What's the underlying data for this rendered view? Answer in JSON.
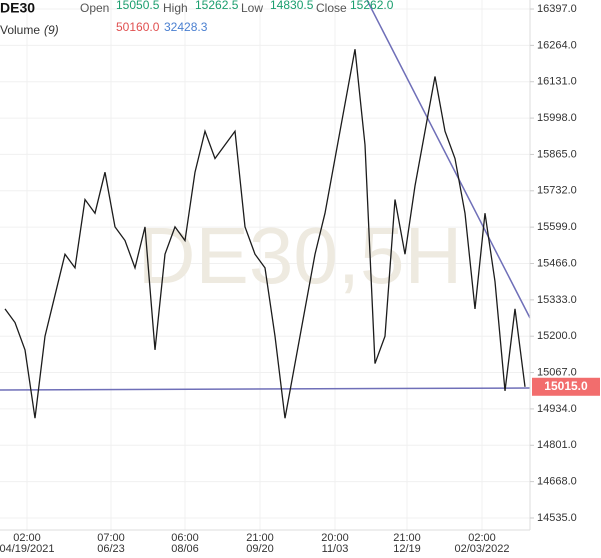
{
  "header": {
    "symbol": "DE30",
    "open_label": "Open",
    "open": "15050.5",
    "high_label": "High",
    "high": "15262.5",
    "low_label": "Low",
    "low": "14830.5",
    "close_label": "Close",
    "close": "15262.0",
    "volume_label": "Volume",
    "volume_period": "(9)",
    "volume_a": "50160.0",
    "volume_b": "32428.3"
  },
  "watermark": "DE30,5H",
  "chart_data": {
    "type": "line",
    "series": [
      {
        "name": "DE30",
        "color": "#1c1c1c",
        "values": [
          15300,
          15250,
          15150,
          14900,
          15200,
          15350,
          15500,
          15450,
          15700,
          15650,
          15800,
          15600,
          15550,
          15450,
          15600,
          15150,
          15500,
          15600,
          15550,
          15800,
          15950,
          15850,
          15900,
          15950,
          15600,
          15500,
          15450,
          15200,
          14900,
          15100,
          15300,
          15500,
          15650,
          15850,
          16050,
          16250,
          15900,
          15100,
          15200,
          15700,
          15500,
          15750,
          15950,
          16150,
          15950,
          15850,
          15650,
          15300,
          15650,
          15400,
          15000,
          15300,
          15015
        ]
      }
    ],
    "ylim": [
      14491,
      16430
    ],
    "yticks": [
      {
        "value": 16397,
        "label": "16397.0"
      },
      {
        "value": 16264,
        "label": "16264.0"
      },
      {
        "value": 16131,
        "label": "16131.0"
      },
      {
        "value": 15998,
        "label": "15998.0"
      },
      {
        "value": 15865,
        "label": "15865.0"
      },
      {
        "value": 15732,
        "label": "15732.0"
      },
      {
        "value": 15599,
        "label": "15599.0"
      },
      {
        "value": 15466,
        "label": "15466.0"
      },
      {
        "value": 15333,
        "label": "15333.0"
      },
      {
        "value": 15200,
        "label": "15200.0"
      },
      {
        "value": 15067,
        "label": "15067.0"
      },
      {
        "value": 14934,
        "label": "14934.0"
      },
      {
        "value": 14801,
        "label": "14801.0"
      },
      {
        "value": 14668,
        "label": "14668.0"
      },
      {
        "value": 14535,
        "label": "14535.0"
      }
    ],
    "xlim": [
      -0.5,
      52.5
    ],
    "xticks": [
      {
        "value": 2.2,
        "label": "02:00",
        "date": "04/19/2021"
      },
      {
        "value": 10.6,
        "label": "07:00",
        "date": "06/23"
      },
      {
        "value": 18,
        "label": "06:00",
        "date": "08/06"
      },
      {
        "value": 25.5,
        "label": "21:00",
        "date": "09/20"
      },
      {
        "value": 33,
        "label": "20:00",
        "date": "11/03"
      },
      {
        "value": 40.2,
        "label": "21:00",
        "date": "12/19"
      },
      {
        "value": 47.7,
        "label": "02:00",
        "date": "02/03/2022"
      }
    ],
    "last_price": {
      "value": 15015,
      "label": "15015.0"
    },
    "grid": true
  }
}
